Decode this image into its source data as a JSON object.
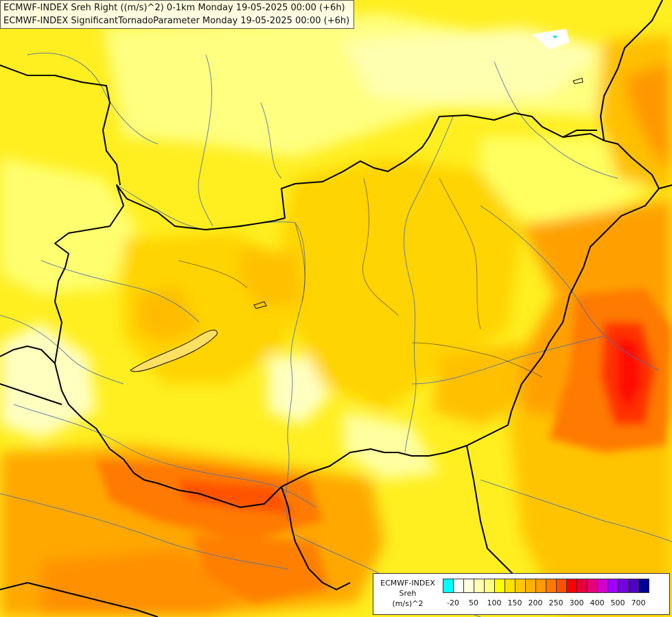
{
  "title": {
    "line1": "ECMWF-INDEX Sreh Right ((m/s)^2) 0-1km Monday 19-05-2025 00:00 (+6h)",
    "line2": "ECMWF-INDEX SignificantTornadoParameter Monday 19-05-2025 00:00 (+6h)"
  },
  "legend": {
    "line1": "ECMWF-INDEX",
    "line2": "Sreh",
    "line3": "(m/s)^2",
    "colors": [
      "#00ffff",
      "#ffffff",
      "#ffffe0",
      "#ffffb0",
      "#ffff80",
      "#ffff00",
      "#ffe000",
      "#ffc800",
      "#ffb000",
      "#ff9a00",
      "#ff7800",
      "#ff5000",
      "#ff0000",
      "#e6003c",
      "#e6007a",
      "#d200c8",
      "#a000ff",
      "#7800e6",
      "#5000c8",
      "#000096"
    ],
    "ticks": [
      "-20",
      "50",
      "100",
      "150",
      "200",
      "250",
      "300",
      "400",
      "500",
      "700"
    ]
  },
  "map_colors": {
    "pale": "#ffffd0",
    "light": "#ffff99",
    "yellow": "#ffff50",
    "gold": "#ffd000",
    "amber": "#ffb400",
    "orange": "#ff9000",
    "deep_orange": "#ff6a00",
    "red": "#ff2000"
  }
}
